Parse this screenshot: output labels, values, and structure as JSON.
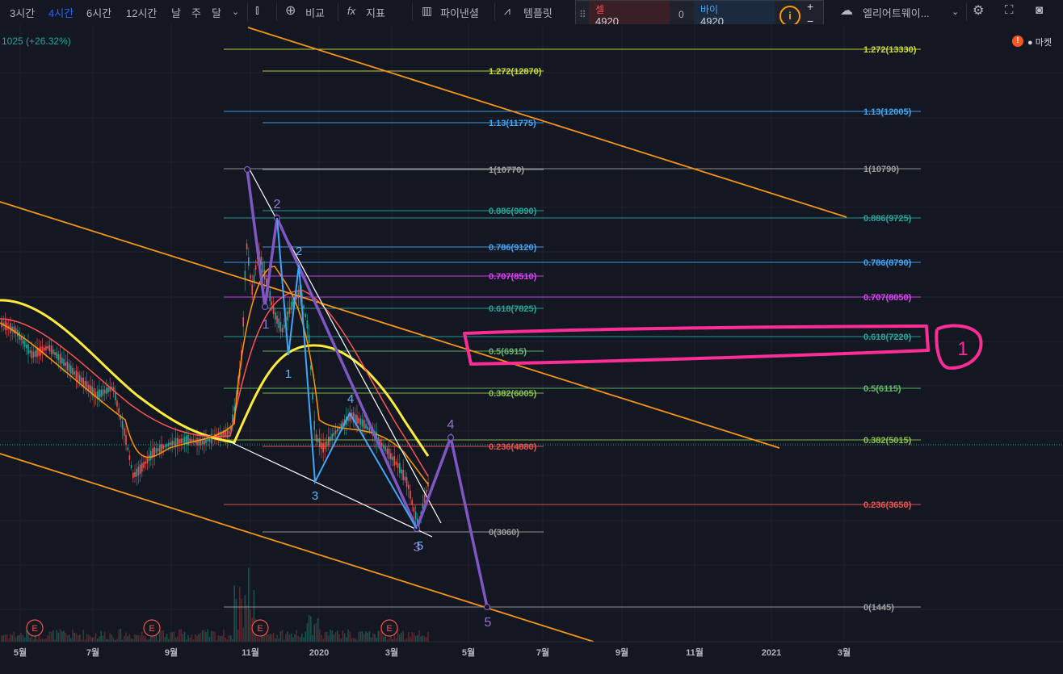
{
  "toolbar": {
    "intervals": [
      "3시간",
      "4시간",
      "6시간",
      "12시간",
      "날",
      "주",
      "달"
    ],
    "active_interval": "4시간",
    "compare_label": "비교",
    "indicators_label": "지표",
    "pine_label": "파이낸셜",
    "templates_label": "템플릿",
    "layout_label": "엘리어트웨이...",
    "market_label": "마켓"
  },
  "trade": {
    "sell_label": "셀",
    "sell_price": "4920",
    "spread": "0",
    "buy_label": "바이",
    "buy_price": "4920"
  },
  "legend": {
    "change": "1025 (+26.32%)"
  },
  "colors": {
    "bg": "#131722",
    "orange": "#f7931a",
    "yellow": "#ffeb3b",
    "purple": "#7e57c2",
    "blue": "#42a5f5",
    "magenta": "#ff2d95"
  },
  "chart_data": {
    "type": "line",
    "x_ticks": [
      "5월",
      "7월",
      "9월",
      "11월",
      "2020",
      "3월",
      "5월",
      "7월",
      "9월",
      "11월",
      "2021",
      "3월"
    ],
    "earnings_marks": [
      "E",
      "E",
      "E",
      "E"
    ],
    "fib_left": [
      {
        "level": "1.272(12870)",
        "color": "#cddc39"
      },
      {
        "level": "1.13(11775)",
        "color": "#42a5f5"
      },
      {
        "level": "1(10770)",
        "color": "#9e9e9e"
      },
      {
        "level": "0.886(9890)",
        "color": "#26a69a"
      },
      {
        "level": "0.786(9120)",
        "color": "#42a5f5"
      },
      {
        "level": "0.707(8510)",
        "color": "#e040fb"
      },
      {
        "level": "0.618(7825)",
        "color": "#26a69a"
      },
      {
        "level": "0.5(6915)",
        "color": "#66bb6a"
      },
      {
        "level": "0.382(6005)",
        "color": "#8bc34a"
      },
      {
        "level": "0.236(4880)",
        "color": "#ef5350"
      },
      {
        "level": "0(3060)",
        "color": "#9e9e9e"
      }
    ],
    "fib_right": [
      {
        "level": "1.272(13330)",
        "color": "#cddc39"
      },
      {
        "level": "1.13(12005)",
        "color": "#42a5f5"
      },
      {
        "level": "1(10790)",
        "color": "#9e9e9e"
      },
      {
        "level": "0.886(9725)",
        "color": "#26a69a"
      },
      {
        "level": "0.786(8790)",
        "color": "#42a5f5"
      },
      {
        "level": "0.707(8050)",
        "color": "#e040fb"
      },
      {
        "level": "0.618(7220)",
        "color": "#26a69a"
      },
      {
        "level": "0.5(6115)",
        "color": "#66bb6a"
      },
      {
        "level": "0.382(5015)",
        "color": "#8bc34a"
      },
      {
        "level": "0.236(3650)",
        "color": "#ef5350"
      },
      {
        "level": "0(1445)",
        "color": "#9e9e9e"
      }
    ],
    "wave_labels": {
      "purple": [
        "1",
        "2",
        "3",
        "4",
        "5"
      ],
      "blue": [
        "1",
        "2",
        "3",
        "4",
        "5"
      ]
    },
    "annotation": "1"
  }
}
